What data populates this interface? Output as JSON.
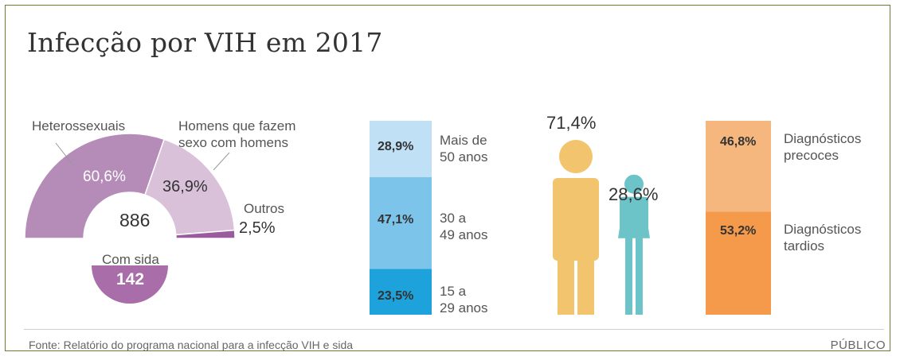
{
  "title": "Infecção por VIH em 2017",
  "footer": {
    "source": "Fonte: Relatório do programa nacional para a infecção VIH e sida",
    "brand": "PÚBLICO"
  },
  "chart_data": [
    {
      "type": "pie",
      "subtype": "semi-donut",
      "center_value": "886",
      "categories": [
        "Heterossexuais",
        "Homens que fazem sexo com homens",
        "Outros"
      ],
      "values": [
        60.6,
        36.9,
        2.5
      ],
      "value_labels": [
        "60,6%",
        "36,9%",
        "2,5%"
      ],
      "category_labels": [
        "Heterossexuais",
        "Homens que fazem\nsexo com homens",
        "Outros"
      ],
      "colors": [
        "#b58bb8",
        "#d9c1d9",
        "#9a5c9e"
      ],
      "sub_label": "Com sida",
      "sub_value": "142",
      "sub_color": "#a96eaa"
    },
    {
      "type": "bar",
      "subtype": "stacked-100",
      "categories": [
        "Mais de 50 anos",
        "30 a 49 anos",
        "15 a 29 anos"
      ],
      "category_labels": [
        "Mais de\n50 anos",
        "30 a\n49 anos",
        "15 a\n29 anos"
      ],
      "values": [
        28.9,
        47.1,
        23.5
      ],
      "value_labels": [
        "28,9%",
        "47,1%",
        "23,5%"
      ],
      "colors": [
        "#bfe0f5",
        "#7cc4ea",
        "#1da2dc"
      ]
    },
    {
      "type": "bar",
      "subtype": "pictogram",
      "categories": [
        "Homens",
        "Mulheres"
      ],
      "values": [
        71.4,
        28.6
      ],
      "value_labels": [
        "71,4%",
        "28,6%"
      ],
      "colors": [
        "#f2c46d",
        "#6cc3c8"
      ]
    },
    {
      "type": "bar",
      "subtype": "stacked-100",
      "categories": [
        "Diagnósticos precoces",
        "Diagnósticos tardios"
      ],
      "category_labels": [
        "Diagnósticos\nprecoces",
        "Diagnósticos\ntardios"
      ],
      "values": [
        46.8,
        53.2
      ],
      "value_labels": [
        "46,8%",
        "53,2%"
      ],
      "colors": [
        "#f6b77e",
        "#f49a4a"
      ]
    }
  ]
}
